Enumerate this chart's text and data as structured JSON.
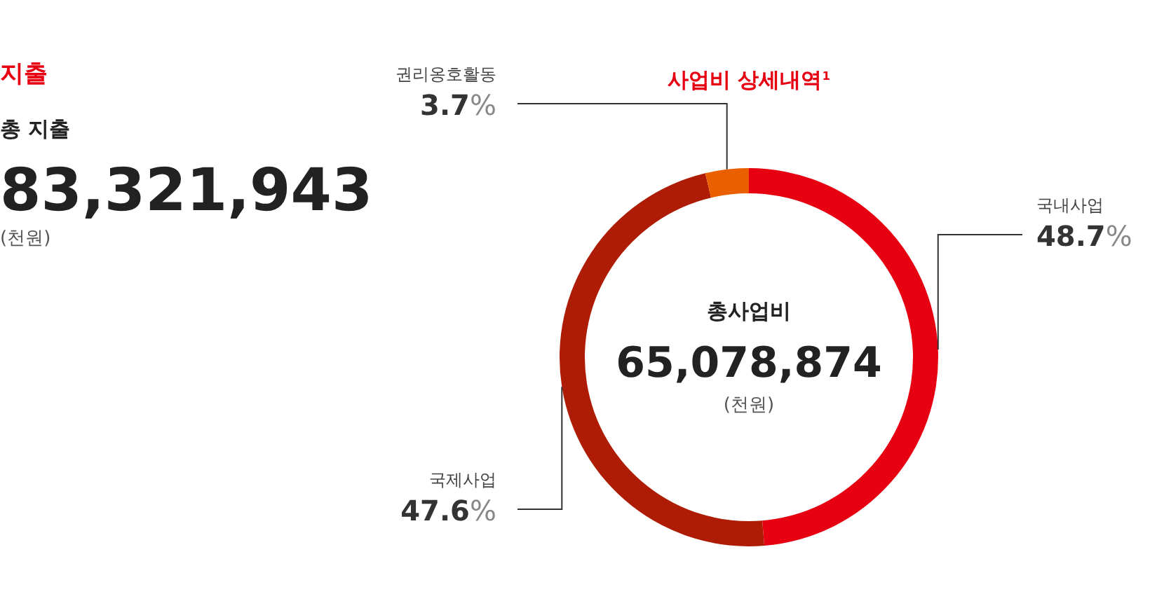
{
  "chart_data": [
    {
      "type": "other",
      "title": "지출",
      "subtitle": "총 지출",
      "annotations": [
        "83,321,943",
        "(천원)"
      ]
    },
    {
      "type": "donut",
      "title": "사업비 상세내역$^{1}$",
      "categories": [
        "국내사업",
        "국제사업",
        "권리옹호활동"
      ],
      "values": [
        48.7,
        47.6,
        3.7
      ],
      "value_labels": [
        "48.7%",
        "47.6%",
        "3.7%"
      ],
      "colors": [
        "#e60012",
        "#ae1c05",
        "#ea6000"
      ],
      "annotations": [
        "총사업비",
        "65,078,874",
        "(천원)"
      ]
    }
  ]
}
